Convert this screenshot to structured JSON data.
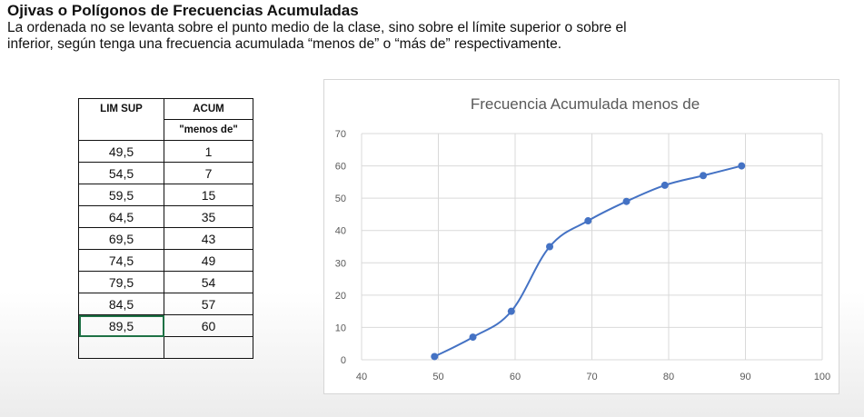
{
  "header": {
    "title": "Ojivas o Polígonos de Frecuencias Acumuladas",
    "description_line1": "La ordenada no se levanta sobre el punto medio de la clase, sino sobre el límite superior o sobre el",
    "description_line2": "inferior, según tenga una frecuencia acumulada “menos de” o “más de” respectivamente."
  },
  "table": {
    "col1_header": "LIM SUP",
    "col2_header": "ACUM",
    "col2_subheader": "\"menos de\"",
    "rows": [
      {
        "lim": "49,5",
        "acum": "1"
      },
      {
        "lim": "54,5",
        "acum": "7"
      },
      {
        "lim": "59,5",
        "acum": "15"
      },
      {
        "lim": "64,5",
        "acum": "35"
      },
      {
        "lim": "69,5",
        "acum": "43"
      },
      {
        "lim": "74,5",
        "acum": "49"
      },
      {
        "lim": "79,5",
        "acum": "54"
      },
      {
        "lim": "84,5",
        "acum": "57"
      },
      {
        "lim": "89,5",
        "acum": "60"
      }
    ],
    "selected_row": 8
  },
  "chart_data": {
    "type": "scatter",
    "title": "Frecuencia Acumulada menos de",
    "xlabel": "",
    "ylabel": "",
    "xlim": [
      40,
      100
    ],
    "ylim": [
      0,
      70
    ],
    "xticks": [
      40,
      50,
      60,
      70,
      80,
      90,
      100
    ],
    "yticks": [
      0,
      10,
      20,
      30,
      40,
      50,
      60,
      70
    ],
    "grid": true,
    "smooth_line": true,
    "series": [
      {
        "x": [
          49.5,
          54.5,
          59.5,
          64.5,
          69.5,
          74.5,
          79.5,
          84.5,
          89.5
        ],
        "y": [
          1,
          7,
          15,
          35,
          43,
          49,
          54,
          57,
          60
        ],
        "color": "#4472c4"
      }
    ]
  }
}
